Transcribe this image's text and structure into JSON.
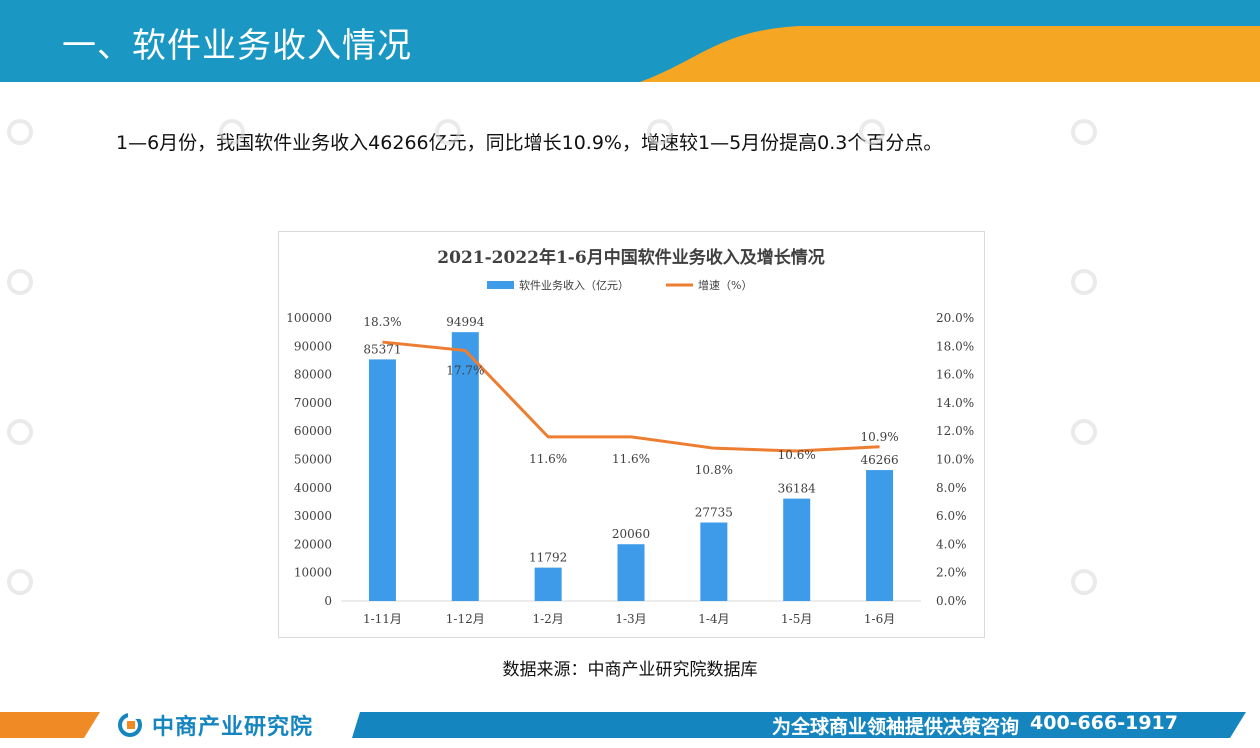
{
  "header": {
    "title": "一、软件业务收入情况"
  },
  "summary": {
    "text": "1—6月份，我国软件业务收入46266亿元，同比增长10.9%，增速较1—5月份提高0.3个百分点。"
  },
  "colors": {
    "bar": "#3d9be9",
    "line": "#ed7d31",
    "header_blue": "#1b97c4",
    "header_orange": "#f5a623",
    "footer_blue": "#1585c0"
  },
  "chart_data": {
    "type": "bar+line",
    "title": "2021-2022年1-6月中国软件业务收入及增长情况",
    "categories": [
      "1-11月",
      "1-12月",
      "1-2月",
      "1-3月",
      "1-4月",
      "1-5月",
      "1-6月"
    ],
    "series": [
      {
        "name": "软件业务收入（亿元）",
        "type": "bar",
        "axis": "left",
        "values": [
          85371,
          94994,
          11792,
          20060,
          27735,
          36184,
          46266
        ],
        "labels": [
          "85371",
          "94994",
          "11792",
          "20060",
          "27735",
          "36184",
          "46266"
        ]
      },
      {
        "name": "增速（%）",
        "type": "line",
        "axis": "right",
        "values": [
          18.3,
          17.7,
          11.6,
          11.6,
          10.8,
          10.6,
          10.9
        ],
        "labels": [
          "18.3%",
          "17.7%",
          "11.6%",
          "11.6%",
          "10.8%",
          "10.6%",
          "10.9%"
        ]
      }
    ],
    "y_left": {
      "min": 0,
      "max": 100000,
      "ticks": [
        "0",
        "10000",
        "20000",
        "30000",
        "40000",
        "50000",
        "60000",
        "70000",
        "80000",
        "90000",
        "100000"
      ]
    },
    "y_right": {
      "min": 0,
      "max": 20,
      "ticks": [
        "0.0%",
        "2.0%",
        "4.0%",
        "6.0%",
        "8.0%",
        "10.0%",
        "12.0%",
        "14.0%",
        "16.0%",
        "18.0%",
        "20.0%"
      ]
    },
    "legend": "top"
  },
  "source": {
    "text": "数据来源：中商产业研究院数据库"
  },
  "footer": {
    "brand": "中商产业研究院",
    "slogan": "为全球商业领袖提供决策咨询",
    "phone": "400-666-1917"
  }
}
